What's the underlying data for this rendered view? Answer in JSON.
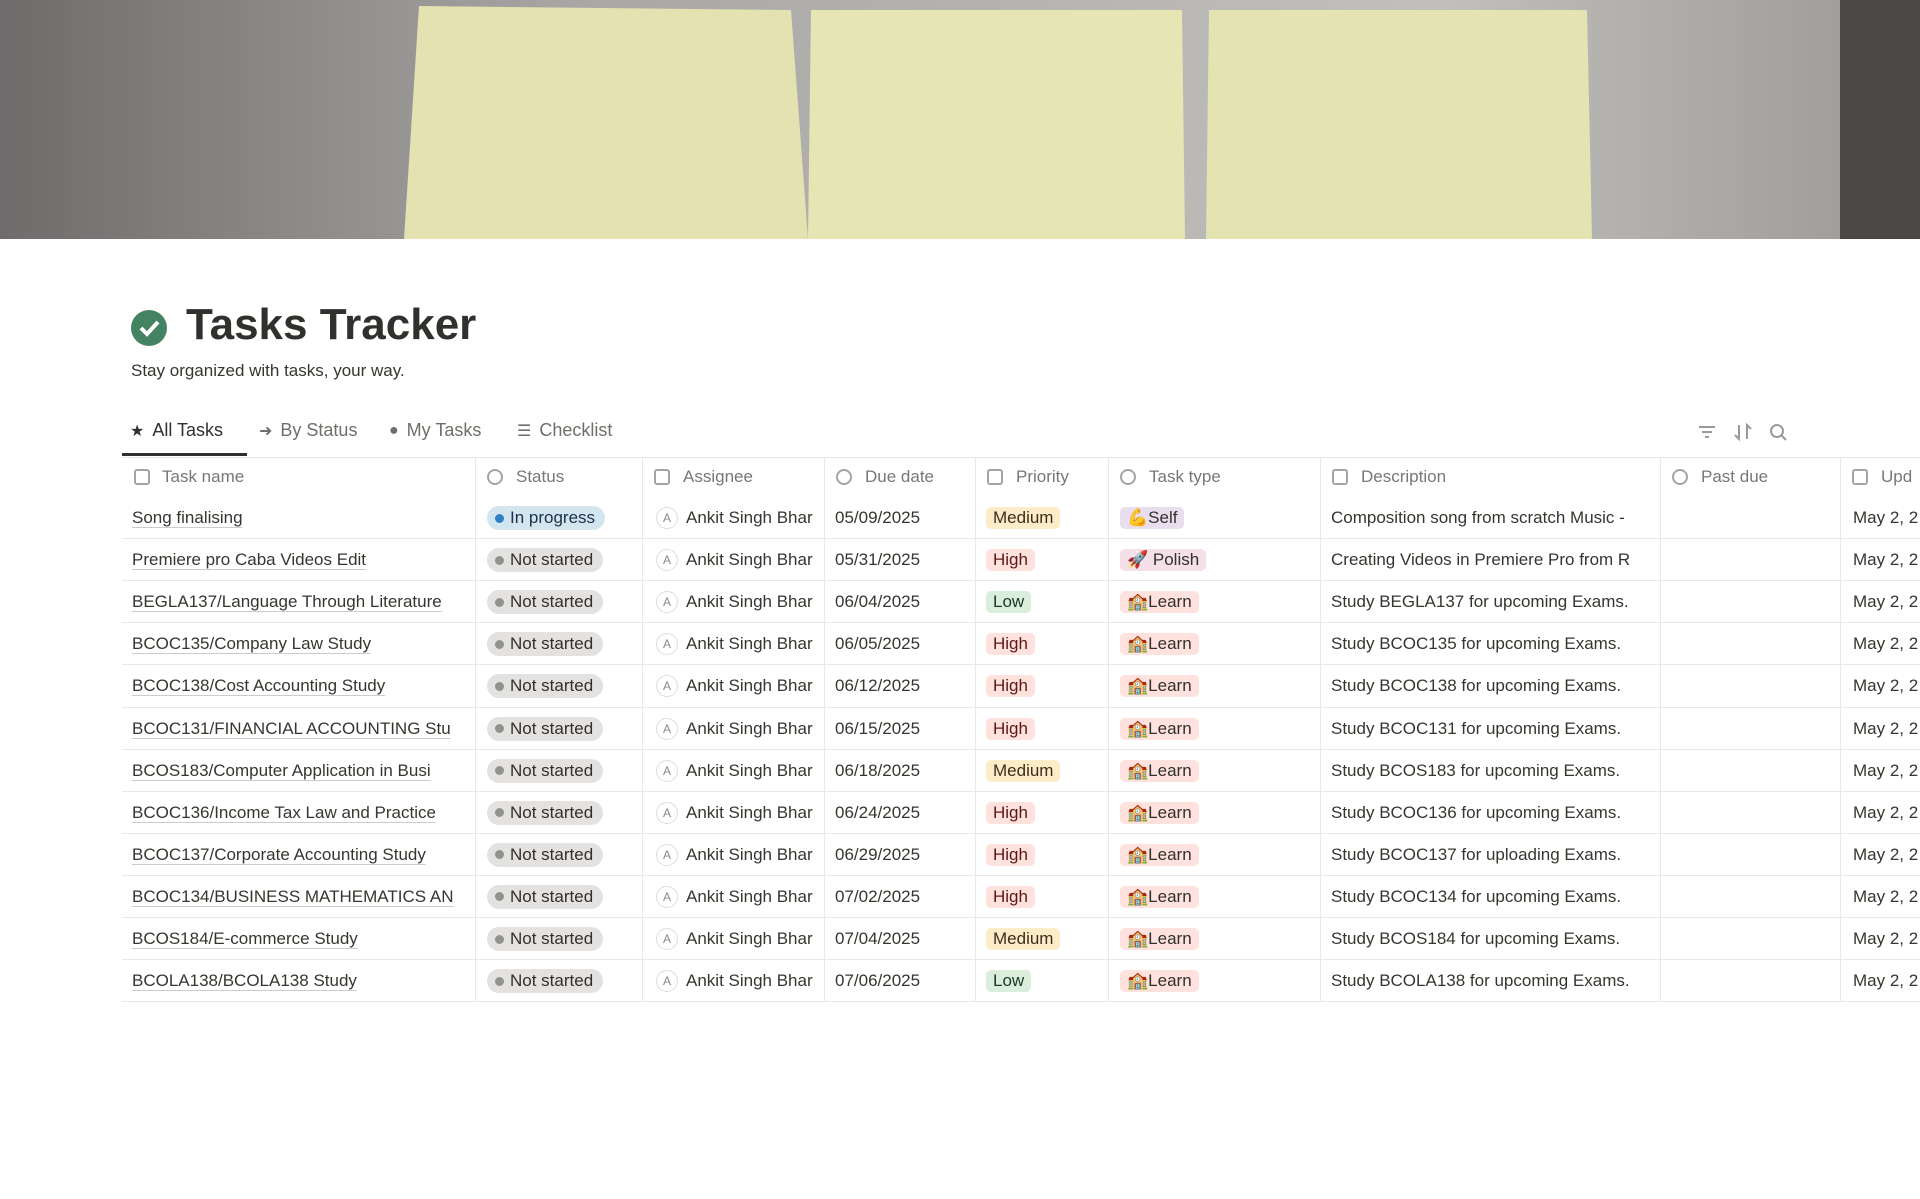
{
  "header": {
    "title": "Tasks Tracker",
    "description": "Stay organized with tasks, your way."
  },
  "tabs": [
    "All Tasks",
    "By Status",
    "My Tasks",
    "Checklist"
  ],
  "table": {
    "columns": [
      "Task name",
      "Status",
      "Assignee",
      "Due date",
      "Priority",
      "Task type",
      "Description",
      "Past due",
      "Upd"
    ],
    "rows": [
      {
        "name": "Song finalising",
        "status": "In progress",
        "assignee": "Ankit Singh Bhar",
        "due": "05/09/2025",
        "priority": "Medium",
        "type": "💪Self",
        "description": "Composition song from scratch Music -",
        "updated": "May 2, 2"
      },
      {
        "name": "Premiere pro Caba Videos Edit",
        "status": "Not started",
        "assignee": "Ankit Singh Bhar",
        "due": "05/31/2025",
        "priority": "High",
        "type": "🚀 Polish",
        "description": "Creating Videos in Premiere Pro from R",
        "updated": "May 2, 2"
      },
      {
        "name": "BEGLA137/Language Through Literature",
        "status": "Not started",
        "assignee": "Ankit Singh Bhar",
        "due": "06/04/2025",
        "priority": "Low",
        "type": "🏫Learn",
        "description": "Study BEGLA137 for upcoming Exams.",
        "updated": "May 2, 2"
      },
      {
        "name": "BCOC135/Company Law Study",
        "status": "Not started",
        "assignee": "Ankit Singh Bhar",
        "due": "06/05/2025",
        "priority": "High",
        "type": "🏫Learn",
        "description": "Study BCOC135 for upcoming Exams.",
        "updated": "May 2, 2"
      },
      {
        "name": "BCOC138/Cost Accounting Study",
        "status": "Not started",
        "assignee": "Ankit Singh Bhar",
        "due": "06/12/2025",
        "priority": "High",
        "type": "🏫Learn",
        "description": "Study BCOC138 for upcoming Exams.",
        "updated": "May 2, 2"
      },
      {
        "name": "BCOC131/FINANCIAL ACCOUNTING Stu",
        "status": "Not started",
        "assignee": "Ankit Singh Bhar",
        "due": "06/15/2025",
        "priority": "High",
        "type": "🏫Learn",
        "description": "Study BCOC131 for upcoming Exams.",
        "updated": "May 2, 2"
      },
      {
        "name": "BCOS183/Computer Application in Busi",
        "status": "Not started",
        "assignee": "Ankit Singh Bhar",
        "due": "06/18/2025",
        "priority": "Medium",
        "type": "🏫Learn",
        "description": "Study BCOS183 for upcoming Exams.",
        "updated": "May 2, 2"
      },
      {
        "name": "BCOC136/Income Tax Law and Practice",
        "status": "Not started",
        "assignee": "Ankit Singh Bhar",
        "due": "06/24/2025",
        "priority": "High",
        "type": "🏫Learn",
        "description": "Study BCOC136 for upcoming Exams.",
        "updated": "May 2, 2"
      },
      {
        "name": "BCOC137/Corporate Accounting Study",
        "status": "Not started",
        "assignee": "Ankit Singh Bhar",
        "due": "06/29/2025",
        "priority": "High",
        "type": "🏫Learn",
        "description": "Study BCOC137 for uploading Exams.",
        "updated": "May 2, 2"
      },
      {
        "name": "BCOC134/BUSINESS MATHEMATICS AN",
        "status": "Not started",
        "assignee": "Ankit Singh Bhar",
        "due": "07/02/2025",
        "priority": "High",
        "type": "🏫Learn",
        "description": "Study BCOC134 for upcoming Exams.",
        "updated": "May 2, 2"
      },
      {
        "name": "BCOS184/E-commerce Study",
        "status": "Not started",
        "assignee": "Ankit Singh Bhar",
        "due": "07/04/2025",
        "priority": "Medium",
        "type": "🏫Learn",
        "description": "Study BCOS184 for upcoming Exams.",
        "updated": "May 2, 2"
      },
      {
        "name": "BCOLA138/BCOLA138 Study",
        "status": "Not started",
        "assignee": "Ankit Singh Bhar",
        "due": "07/06/2025",
        "priority": "Low",
        "type": "🏫Learn",
        "description": "Study BCOLA138 for upcoming Exams.",
        "updated": "May 2, 2"
      }
    ]
  },
  "avatar": "A"
}
